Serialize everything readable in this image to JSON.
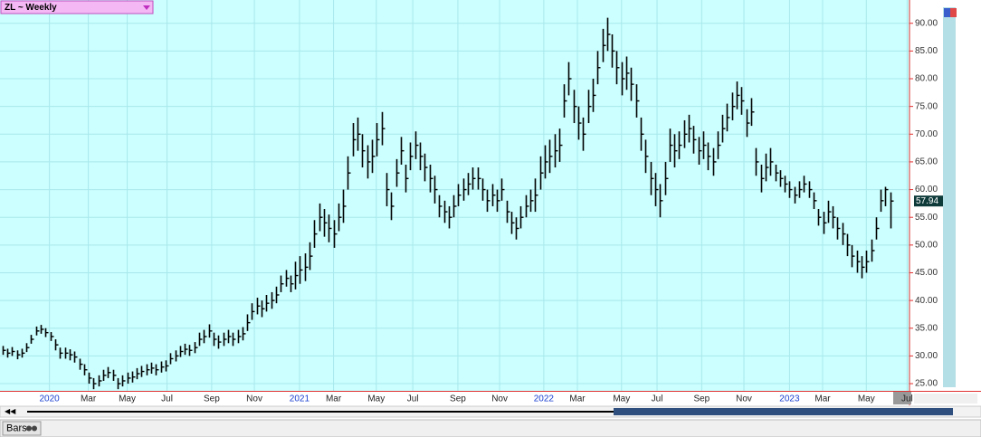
{
  "chart_data": {
    "type": "ohlc",
    "title": "ZL ~ Weekly",
    "footer": "Bars",
    "color": "#000000",
    "grid": true,
    "xlim": [
      -0.5,
      189
    ],
    "ylim": [
      23.7,
      94.2
    ],
    "yticks": [
      {
        "value": 25,
        "label": "25.00"
      },
      {
        "value": 30,
        "label": "30.00"
      },
      {
        "value": 35,
        "label": "35.00"
      },
      {
        "value": 40,
        "label": "40.00"
      },
      {
        "value": 45,
        "label": "45.00"
      },
      {
        "value": 50,
        "label": "50.00"
      },
      {
        "value": 55,
        "label": "55.00"
      },
      {
        "value": 60,
        "label": "60.00"
      },
      {
        "value": 65,
        "label": "65.00"
      },
      {
        "value": 70,
        "label": "70.00"
      },
      {
        "value": 75,
        "label": "75.00"
      },
      {
        "value": 80,
        "label": "80.00"
      },
      {
        "value": 85,
        "label": "85.00"
      },
      {
        "value": 90,
        "label": "90.00"
      }
    ],
    "xticks": [
      {
        "value": 9.8,
        "label": "2020"
      },
      {
        "value": 17.9,
        "label": "Mar"
      },
      {
        "value": 26,
        "label": "May"
      },
      {
        "value": 34.3,
        "label": "Jul"
      },
      {
        "value": 43.6,
        "label": "Sep"
      },
      {
        "value": 52.5,
        "label": "Nov"
      },
      {
        "value": 61.9,
        "label": "2021"
      },
      {
        "value": 69,
        "label": "Mar"
      },
      {
        "value": 77.9,
        "label": "May"
      },
      {
        "value": 85.5,
        "label": "Jul"
      },
      {
        "value": 94.9,
        "label": "Sep"
      },
      {
        "value": 103.6,
        "label": "Nov"
      },
      {
        "value": 112.8,
        "label": "2022"
      },
      {
        "value": 119.8,
        "label": "Mar"
      },
      {
        "value": 129,
        "label": "May"
      },
      {
        "value": 136.4,
        "label": "Jul"
      },
      {
        "value": 145.7,
        "label": "Sep"
      },
      {
        "value": 154.5,
        "label": "Nov"
      },
      {
        "value": 164,
        "label": "2023"
      },
      {
        "value": 170.9,
        "label": "Mar"
      },
      {
        "value": 180,
        "label": "May"
      },
      {
        "value": 188.5,
        "label": "Jul"
      }
    ],
    "high": [
      31.8,
      31.3,
      31.6,
      31,
      31.3,
      32.3,
      33.8,
      35.3,
      35.6,
      35,
      34.3,
      33,
      31.5,
      31.5,
      31.2,
      30.8,
      29.5,
      28.5,
      27,
      26,
      26.5,
      27.5,
      28,
      27.5,
      26,
      26.5,
      27,
      27.2,
      27.8,
      28.2,
      28.5,
      28.8,
      28.5,
      29,
      29.2,
      30.5,
      31,
      31.8,
      32.2,
      32,
      32.5,
      34.2,
      34.7,
      35.7,
      34.2,
      33.7,
      34.2,
      34.7,
      34.2,
      34.7,
      35.2,
      37.5,
      39.5,
      40.5,
      40,
      41,
      41.5,
      42.5,
      44.5,
      45.5,
      44.5,
      47,
      48,
      48.5,
      50.5,
      54.5,
      57.5,
      56.5,
      55.5,
      54.5,
      57.5,
      60,
      66,
      72,
      73,
      70,
      68,
      69,
      72,
      74,
      63,
      59.5,
      65.5,
      69.5,
      64.5,
      68.5,
      70.5,
      68.5,
      66.5,
      64.5,
      62.5,
      59,
      58,
      57,
      59,
      61,
      62,
      63,
      64,
      64,
      62,
      60,
      61,
      60,
      62,
      58,
      56,
      55,
      57,
      59,
      60,
      62,
      66,
      68,
      69,
      70,
      71,
      79,
      83,
      78,
      75,
      73,
      78,
      80,
      85,
      89,
      91,
      88,
      85,
      83,
      84,
      82,
      79,
      73,
      69,
      65,
      63,
      61,
      65,
      71,
      70,
      70.5,
      72.5,
      73.5,
      71.5,
      69.5,
      70.5,
      68.5,
      67.5,
      70.5,
      73.5,
      75.5,
      77.5,
      79.5,
      78.5,
      74.5,
      76.5,
      67.5,
      64.5,
      66.5,
      67.5,
      64.5,
      63.5,
      62.5,
      61.5,
      60.5,
      61.5,
      62.5,
      61.5,
      59.5,
      56.5,
      56,
      58,
      57,
      55,
      54,
      52,
      50,
      49,
      48,
      49,
      51,
      55,
      60,
      60.5,
      59.5
    ],
    "low": [
      30.2,
      29.7,
      30,
      29.4,
      29.7,
      30.7,
      32.2,
      33.7,
      34,
      33.4,
      32.7,
      31,
      29.5,
      29.5,
      29.2,
      28.8,
      27.5,
      26.5,
      25,
      24,
      24.5,
      25.5,
      26,
      25.5,
      24,
      24.5,
      25,
      25.2,
      25.8,
      26.2,
      26.5,
      26.8,
      26.5,
      27,
      27.2,
      28.5,
      29,
      29.8,
      30.2,
      30,
      30.5,
      31.8,
      32.3,
      33.3,
      31.8,
      31.3,
      31.8,
      32.3,
      31.8,
      32.3,
      32.8,
      34.5,
      36.5,
      37.5,
      37,
      38,
      38.5,
      39.5,
      41.5,
      42.5,
      41.5,
      42,
      43,
      43.5,
      45.5,
      49.5,
      52.5,
      51.5,
      50.5,
      49.5,
      52.5,
      54,
      60,
      66,
      67,
      64,
      62,
      63,
      66,
      68,
      57,
      54.5,
      60.5,
      64.5,
      59.5,
      63.5,
      65.5,
      63.5,
      61.5,
      59.5,
      57.5,
      55,
      54,
      53,
      55,
      57,
      58,
      59,
      60,
      60,
      58,
      56,
      57,
      56,
      58,
      54,
      52,
      51,
      53,
      55,
      56,
      56,
      60,
      62,
      63,
      64,
      65,
      73,
      77,
      72,
      69,
      67,
      72,
      74,
      79,
      83,
      85,
      82,
      79,
      77,
      78,
      76,
      73,
      67,
      63,
      59,
      57,
      55,
      59,
      65,
      64,
      65.5,
      67.5,
      68.5,
      66.5,
      64.5,
      65.5,
      63.5,
      62.5,
      65.5,
      68.5,
      70.5,
      72.5,
      74.5,
      73.5,
      69.5,
      71.5,
      62.5,
      59.5,
      61.5,
      62.5,
      61.5,
      60.5,
      59.5,
      58.5,
      57.5,
      58.5,
      59.5,
      58.5,
      56.5,
      53.5,
      52,
      54,
      53,
      51,
      50,
      48,
      46,
      45,
      44,
      45,
      47,
      51,
      56,
      57,
      53
    ],
    "close": [
      31,
      30.5,
      30.8,
      30.2,
      30.5,
      31.5,
      33,
      34.5,
      34.8,
      34.2,
      33.5,
      32,
      30.5,
      30.5,
      30.2,
      29.8,
      28.5,
      27.5,
      26,
      25,
      25.5,
      26.5,
      27,
      26.5,
      25,
      25.5,
      26,
      26.2,
      26.8,
      27.2,
      27.5,
      27.8,
      27.5,
      28,
      28.2,
      29.5,
      30,
      30.8,
      31.2,
      31,
      31.5,
      33,
      33.5,
      34.5,
      33,
      32.5,
      33,
      33.5,
      33,
      33.5,
      34,
      36,
      38,
      39,
      38.5,
      39.5,
      40,
      41,
      43,
      44,
      43,
      44.5,
      45.5,
      46,
      48,
      52,
      55,
      54,
      53,
      52,
      55,
      57,
      63,
      69,
      70,
      67,
      65,
      66,
      69,
      71,
      60,
      57,
      63,
      67,
      62,
      66,
      68,
      66,
      64,
      62,
      60,
      57,
      56,
      55,
      57,
      59,
      60,
      61,
      62,
      62,
      60,
      58,
      59,
      58,
      60,
      56,
      54,
      53,
      55,
      57,
      58,
      59,
      63,
      65,
      66,
      67,
      68,
      76,
      80,
      75,
      72,
      70,
      75,
      77,
      82,
      86,
      88,
      85,
      82,
      80,
      81,
      79,
      76,
      70,
      66,
      62,
      60,
      58,
      62,
      68,
      67,
      68,
      70,
      71,
      69,
      67,
      68,
      66,
      65,
      68,
      71,
      73,
      75,
      77,
      76,
      72,
      74,
      65,
      62,
      64,
      65,
      63,
      62,
      61,
      60,
      59,
      60,
      61,
      60,
      58,
      55,
      54,
      56,
      55,
      53,
      52,
      50,
      48,
      47,
      46,
      47,
      49,
      53,
      58,
      60,
      57.94
    ]
  }
}
